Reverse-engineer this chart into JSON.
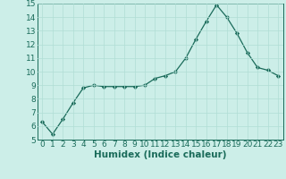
{
  "x": [
    0,
    1,
    2,
    3,
    4,
    5,
    6,
    7,
    8,
    9,
    10,
    11,
    12,
    13,
    14,
    15,
    16,
    17,
    18,
    19,
    20,
    21,
    22,
    23
  ],
  "y": [
    6.3,
    5.4,
    6.5,
    7.7,
    8.8,
    9.0,
    8.9,
    8.9,
    8.9,
    8.9,
    9.0,
    9.5,
    9.7,
    10.0,
    11.0,
    12.4,
    13.7,
    14.9,
    14.0,
    12.8,
    11.4,
    10.3,
    10.1,
    9.7
  ],
  "xlabel": "Humidex (Indice chaleur)",
  "ylim": [
    5,
    15
  ],
  "xlim_min": -0.5,
  "xlim_max": 23.5,
  "yticks": [
    5,
    6,
    7,
    8,
    9,
    10,
    11,
    12,
    13,
    14,
    15
  ],
  "xticks": [
    0,
    1,
    2,
    3,
    4,
    5,
    6,
    7,
    8,
    9,
    10,
    11,
    12,
    13,
    14,
    15,
    16,
    17,
    18,
    19,
    20,
    21,
    22,
    23
  ],
  "line_color": "#1a6b5a",
  "marker_color": "#1a6b5a",
  "bg_color": "#cceee8",
  "grid_color": "#b0ddd5",
  "xlabel_fontsize": 7.5,
  "tick_fontsize": 6.5
}
